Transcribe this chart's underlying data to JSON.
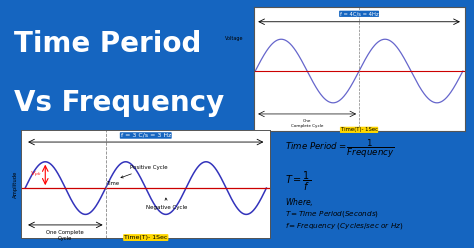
{
  "bg_color": "#1565C0",
  "title_text1": "Time Period",
  "title_text2": "Vs Frequency",
  "title_color": "#FFFFFF",
  "title_fontsize": 20,
  "wave_bg": "#FFFFFF",
  "wave_color": "#3333BB",
  "hline_color": "#CC0000",
  "freq_label": "f = 3 C/s = 3 Hz",
  "freq_label_bg": "#1565C0",
  "freq_label_color": "#FFFFFF",
  "time_label": "Time(T)- 1Sec",
  "time_label_bg": "#FFD700",
  "time_label_color": "#000000",
  "positive_cycle": "Positive Cycle",
  "negative_cycle": "Negative Cycle",
  "one_complete": "One Complete\nCycle",
  "vpm_label": "V_{pk}",
  "time_label2": "Time",
  "amplitude_label": "Amplitude",
  "formula_bg": "#FFFFFF",
  "formula_color": "#000000",
  "small_wave_bg": "#FFFFFF",
  "small_wave_color": "#6666CC",
  "small_hline_color": "#CC0000",
  "small_freq_label": "f = 4C/s = 4Hz",
  "small_time_label": "Time(T)- 1Sec",
  "voltage_label": "Voltage",
  "small_one_complete": "One\nComplete Cycle"
}
